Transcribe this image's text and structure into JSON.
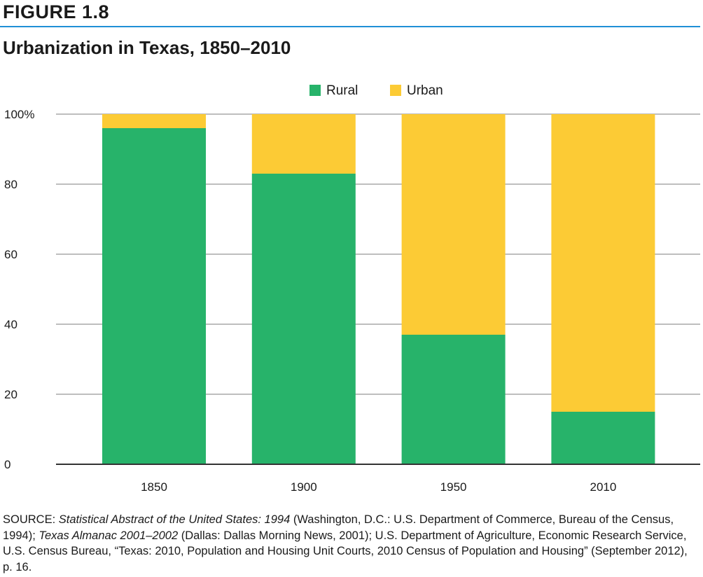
{
  "figure_label": "FIGURE 1.8",
  "chart_data": {
    "type": "bar",
    "stacked": true,
    "title": "Urbanization in Texas, 1850–2010",
    "categories": [
      "1850",
      "1900",
      "1950",
      "2010"
    ],
    "series": [
      {
        "name": "Rural",
        "color": "#27b36a",
        "values": [
          96,
          83,
          37,
          15
        ]
      },
      {
        "name": "Urban",
        "color": "#fccb35",
        "values": [
          4,
          17,
          63,
          85
        ]
      }
    ],
    "ylim": [
      0,
      100
    ],
    "yticks": [
      0,
      20,
      40,
      60,
      80,
      100
    ],
    "ytick_labels": [
      "0",
      "20",
      "40",
      "60",
      "80",
      "100%"
    ],
    "xlabel": "",
    "ylabel": "",
    "legend_position": "top-center",
    "grid": true
  },
  "source": {
    "prefix": "SOURCE: ",
    "italic1": "Statistical Abstract of the United States: 1994",
    "text1": " (Washington, D.C.: U.S. Department of Commerce, Bureau of the Census, 1994); ",
    "italic2": "Texas Almanac 2001–2002",
    "text2": " (Dallas: Dallas Morning News, 2001); U.S. Department of Agriculture, Economic Research Service, U.S. Census Bureau, “Texas: 2010, Population and Housing Unit Courts, 2010 Census of Population and Housing” (September 2012), p. 16."
  }
}
